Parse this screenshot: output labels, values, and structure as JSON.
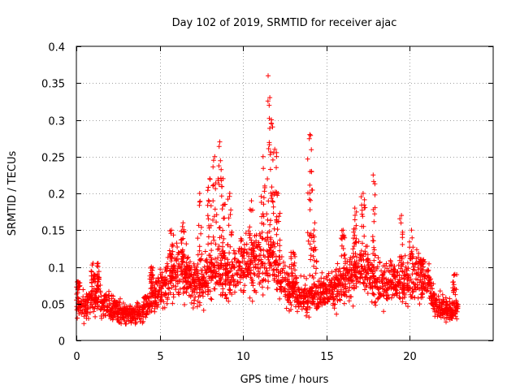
{
  "chart_data": {
    "type": "scatter",
    "title": "Day 102 of 2019, SRMTID for receiver ajac",
    "xlabel": "GPS time / hours",
    "ylabel": "SRMTID / TECUs",
    "xlim": [
      0,
      25
    ],
    "ylim": [
      0,
      0.4
    ],
    "x_ticks": [
      0,
      5,
      10,
      15,
      20
    ],
    "x_tick_labels": [
      "0",
      "5",
      "10",
      "15",
      "20"
    ],
    "y_ticks": [
      0,
      0.05,
      0.1,
      0.15,
      0.2,
      0.25,
      0.3,
      0.35,
      0.4
    ],
    "y_tick_labels": [
      "0",
      "0.05",
      "0.1",
      "0.15",
      "0.2",
      "0.25",
      "0.3",
      "0.35",
      "0.4"
    ],
    "grid": true,
    "marker": "+",
    "color": "#ff0000",
    "series": [
      {
        "name": "SRMTID",
        "envelope": {
          "x": [
            0,
            0.5,
            1,
            1.5,
            2,
            2.5,
            3,
            3.5,
            4,
            4.5,
            5,
            5.5,
            6,
            6.5,
            7,
            7.5,
            8,
            8.5,
            9,
            9.5,
            10,
            10.5,
            11,
            11.5,
            12,
            12.5,
            13,
            13.5,
            14,
            14.5,
            15,
            15.5,
            16,
            16.5,
            17,
            17.5,
            18,
            18.5,
            19,
            19.5,
            20,
            20.5,
            21,
            21.5,
            22,
            22.5,
            22.9
          ],
          "y": [
            0.05,
            0.045,
            0.06,
            0.055,
            0.045,
            0.04,
            0.035,
            0.035,
            0.04,
            0.06,
            0.07,
            0.08,
            0.1,
            0.09,
            0.075,
            0.08,
            0.09,
            0.1,
            0.09,
            0.095,
            0.11,
            0.1,
            0.11,
            0.12,
            0.1,
            0.075,
            0.065,
            0.06,
            0.06,
            0.065,
            0.065,
            0.07,
            0.08,
            0.09,
            0.1,
            0.09,
            0.085,
            0.08,
            0.08,
            0.075,
            0.08,
            0.085,
            0.08,
            0.05,
            0.045,
            0.04,
            0.05
          ]
        },
        "bursts": [
          {
            "x": 0.1,
            "y": 0.08
          },
          {
            "x": 1.0,
            "y": 0.105
          },
          {
            "x": 1.3,
            "y": 0.105
          },
          {
            "x": 4.5,
            "y": 0.1
          },
          {
            "x": 5.7,
            "y": 0.15
          },
          {
            "x": 6.4,
            "y": 0.16
          },
          {
            "x": 7.4,
            "y": 0.2
          },
          {
            "x": 8.0,
            "y": 0.22
          },
          {
            "x": 8.3,
            "y": 0.25
          },
          {
            "x": 8.6,
            "y": 0.27
          },
          {
            "x": 8.8,
            "y": 0.22
          },
          {
            "x": 9.2,
            "y": 0.2
          },
          {
            "x": 10.5,
            "y": 0.19
          },
          {
            "x": 11.2,
            "y": 0.25
          },
          {
            "x": 11.5,
            "y": 0.36
          },
          {
            "x": 11.7,
            "y": 0.3
          },
          {
            "x": 11.9,
            "y": 0.26
          },
          {
            "x": 12.1,
            "y": 0.2
          },
          {
            "x": 13.0,
            "y": 0.12
          },
          {
            "x": 14.0,
            "y": 0.28
          },
          {
            "x": 14.1,
            "y": 0.23
          },
          {
            "x": 14.3,
            "y": 0.16
          },
          {
            "x": 16.0,
            "y": 0.15
          },
          {
            "x": 16.7,
            "y": 0.18
          },
          {
            "x": 17.2,
            "y": 0.2
          },
          {
            "x": 17.8,
            "y": 0.225
          },
          {
            "x": 19.5,
            "y": 0.17
          },
          {
            "x": 20.1,
            "y": 0.15
          },
          {
            "x": 20.7,
            "y": 0.11
          },
          {
            "x": 22.7,
            "y": 0.09
          }
        ]
      }
    ]
  }
}
